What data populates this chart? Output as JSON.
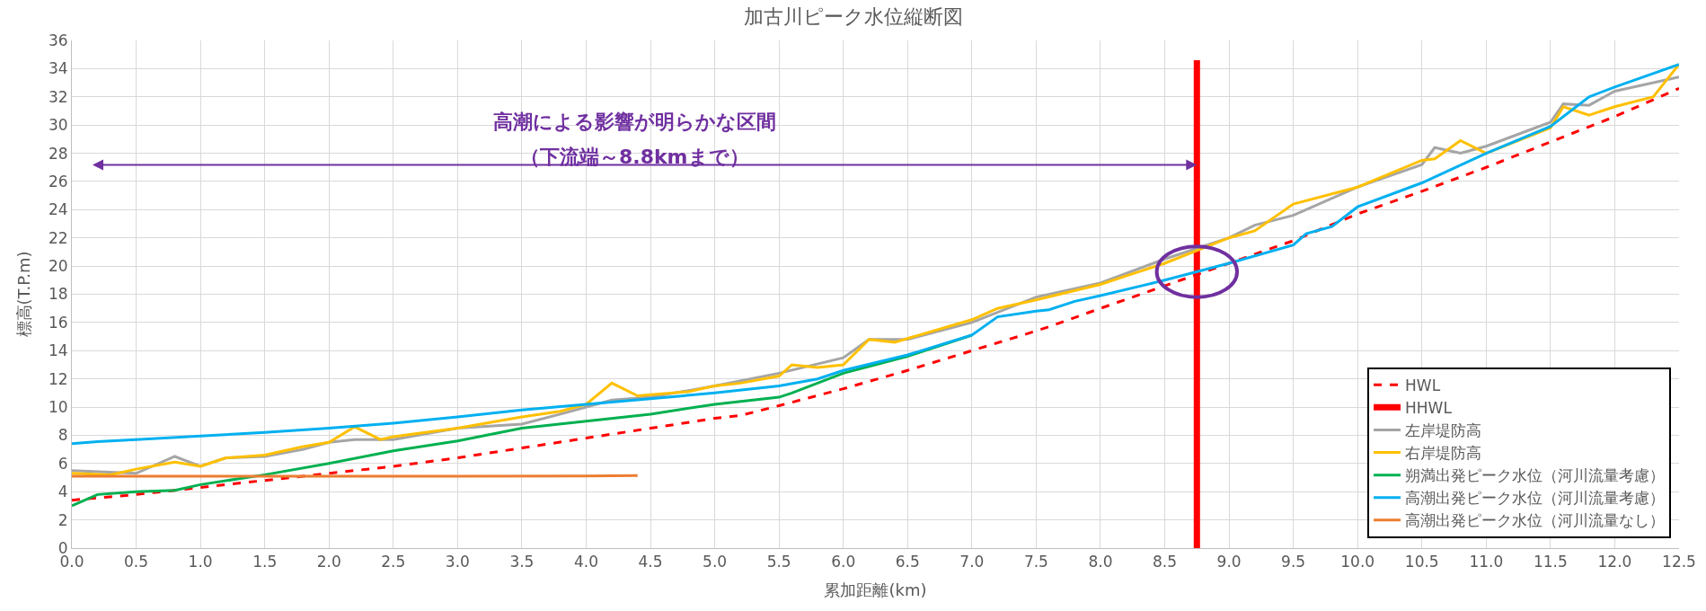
{
  "chart_data": {
    "type": "line",
    "title": "加古川ピーク水位縦断図",
    "xlabel": "累加距離(km)",
    "ylabel": "標高(T.P.m)",
    "xlim": [
      0,
      12.5
    ],
    "ylim": [
      0,
      36
    ],
    "xticks": [
      {
        "value": 0,
        "label": "0.0"
      },
      0.5,
      {
        "value": 1,
        "label": "1.0"
      },
      1.5,
      {
        "value": 2,
        "label": "2.0"
      },
      2.5,
      {
        "value": 3,
        "label": "3.0"
      },
      3.5,
      {
        "value": 4,
        "label": "4.0"
      },
      4.5,
      {
        "value": 5,
        "label": "5.0"
      },
      5.5,
      {
        "value": 6,
        "label": "6.0"
      },
      6.5,
      {
        "value": 7,
        "label": "7.0"
      },
      7.5,
      {
        "value": 8,
        "label": "8.0"
      },
      8.5,
      {
        "value": 9,
        "label": "9.0"
      },
      9.5,
      {
        "value": 10,
        "label": "10.0"
      },
      10.5,
      {
        "value": 11,
        "label": "11.0"
      },
      11.5,
      {
        "value": 12,
        "label": "12.0"
      },
      12.5
    ],
    "yticks": [
      0,
      2,
      4,
      6,
      8,
      10,
      12,
      14,
      16,
      18,
      20,
      22,
      24,
      26,
      28,
      30,
      32,
      34,
      36
    ],
    "grid": true,
    "legend": "bottom right",
    "marker": "none",
    "annotations": [
      "高潮による影響が明らかな区間",
      "（下流端～8.8kmまで）"
    ],
    "series": [
      {
        "name": "HWL",
        "color": "#ff0000",
        "line_style": "dashed",
        "x": [
          0,
          0.5,
          1.0,
          1.5,
          2.0,
          2.5,
          3.0,
          3.5,
          4.0,
          4.5,
          5.0,
          5.2,
          5.5,
          6.0,
          6.5,
          7.0,
          7.5,
          7.6,
          8.0,
          8.5,
          9.0,
          9.5,
          10.0,
          10.5,
          11.0,
          11.5,
          12.0,
          12.5
        ],
        "values": [
          3.4,
          3.8,
          4.3,
          4.8,
          5.3,
          5.8,
          6.4,
          7.1,
          7.8,
          8.5,
          9.2,
          9.4,
          10.1,
          11.3,
          12.6,
          14.0,
          15.4,
          15.7,
          17.0,
          18.6,
          20.2,
          21.8,
          23.7,
          25.3,
          27.0,
          28.8,
          30.6,
          32.6
        ]
      },
      {
        "name": "HHWL",
        "color": "#ff0000",
        "line_style": "solid",
        "x": [
          8.75,
          8.75
        ],
        "values": [
          0,
          34.6
        ]
      },
      {
        "name": "左岸堤防高",
        "color": "#a5a5a5",
        "line_style": "solid",
        "x": [
          0,
          0.5,
          0.8,
          1.0,
          1.2,
          1.5,
          1.8,
          2.0,
          2.2,
          2.5,
          3.0,
          3.5,
          3.8,
          4.0,
          4.2,
          4.5,
          5.0,
          5.5,
          6.0,
          6.2,
          6.5,
          7.0,
          7.5,
          8.0,
          8.5,
          9.0,
          9.2,
          9.5,
          10.0,
          10.5,
          10.6,
          10.8,
          11.0,
          11.5,
          11.6,
          11.8,
          12.0,
          12.5
        ],
        "values": [
          5.5,
          5.3,
          6.5,
          5.8,
          6.4,
          6.5,
          7.0,
          7.5,
          7.7,
          7.7,
          8.5,
          8.8,
          9.5,
          10.0,
          10.5,
          10.7,
          11.5,
          12.4,
          13.5,
          14.8,
          14.8,
          16.0,
          17.8,
          18.8,
          20.5,
          22.0,
          22.9,
          23.6,
          25.6,
          27.2,
          28.4,
          28.0,
          28.5,
          30.2,
          31.5,
          31.4,
          32.4,
          33.4
        ]
      },
      {
        "name": "右岸堤防高",
        "color": "#ffc000",
        "line_style": "solid",
        "x": [
          0,
          0.3,
          0.5,
          0.8,
          1.0,
          1.2,
          1.5,
          1.8,
          2.0,
          2.2,
          2.4,
          2.5,
          3.0,
          3.5,
          3.8,
          4.0,
          4.2,
          4.4,
          4.8,
          5.0,
          5.2,
          5.5,
          5.6,
          5.8,
          6.0,
          6.2,
          6.4,
          7.0,
          7.2,
          7.5,
          8.0,
          8.5,
          9.0,
          9.2,
          9.5,
          10.0,
          10.5,
          10.6,
          10.8,
          11.0,
          11.5,
          11.6,
          11.8,
          12.0,
          12.3,
          12.5
        ],
        "values": [
          5.3,
          5.2,
          5.6,
          6.1,
          5.8,
          6.4,
          6.6,
          7.2,
          7.5,
          8.6,
          7.7,
          7.9,
          8.5,
          9.3,
          9.7,
          10.2,
          11.7,
          10.8,
          11.1,
          11.5,
          11.7,
          12.2,
          13.0,
          12.8,
          13.0,
          14.8,
          14.6,
          16.2,
          17.0,
          17.6,
          18.7,
          20.2,
          22.0,
          22.5,
          24.4,
          25.6,
          27.5,
          27.6,
          28.9,
          28.0,
          29.8,
          31.3,
          30.7,
          31.3,
          32.0,
          34.3
        ]
      },
      {
        "name": "朔満出発ピーク水位（河川流量考慮）",
        "color": "#00b050",
        "line_style": "solid",
        "x": [
          0,
          0.2,
          0.5,
          0.8,
          1.0,
          1.5,
          2.0,
          2.5,
          3.0,
          3.5,
          4.0,
          4.5,
          5.0,
          5.5,
          5.6,
          6.0,
          6.5,
          7.0
        ],
        "values": [
          3.0,
          3.8,
          4.0,
          4.1,
          4.5,
          5.2,
          6.0,
          6.9,
          7.6,
          8.5,
          9.0,
          9.5,
          10.2,
          10.7,
          11.0,
          12.4,
          13.6,
          15.1
        ]
      },
      {
        "name": "高潮出発ピーク水位（河川流量考慮）",
        "color": "#00b0f0",
        "line_style": "solid",
        "x": [
          0,
          0.2,
          0.5,
          1.0,
          1.5,
          2.0,
          2.5,
          3.0,
          3.5,
          4.0,
          4.5,
          5.0,
          5.5,
          5.8,
          6.0,
          6.5,
          7.0,
          7.2,
          7.5,
          7.6,
          7.8,
          8.0,
          8.5,
          9.0,
          9.5,
          9.6,
          9.8,
          10.0,
          10.5,
          11.0,
          11.5,
          11.8,
          12.0,
          12.5
        ],
        "values": [
          7.4,
          7.55,
          7.7,
          7.95,
          8.2,
          8.5,
          8.85,
          9.3,
          9.8,
          10.2,
          10.6,
          11.0,
          11.5,
          12.0,
          12.6,
          13.7,
          15.1,
          16.4,
          16.8,
          16.9,
          17.5,
          17.9,
          19.0,
          20.2,
          21.5,
          22.3,
          22.8,
          24.2,
          25.9,
          28.0,
          29.9,
          32.0,
          32.7,
          34.3
        ]
      },
      {
        "name": "高潮出発ピーク水位（河川流量なし）",
        "color": "#ed7d31",
        "line_style": "solid",
        "x": [
          0,
          1.0,
          2.0,
          3.0,
          4.0,
          4.4
        ],
        "values": [
          5.1,
          5.1,
          5.1,
          5.1,
          5.12,
          5.15
        ]
      }
    ]
  }
}
